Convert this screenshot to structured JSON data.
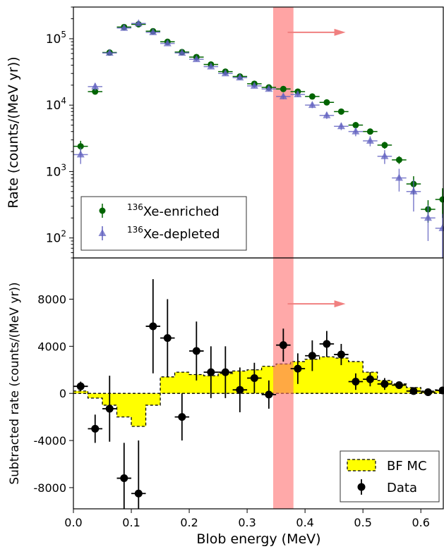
{
  "chart_data": [
    {
      "type": "scatter",
      "ylabel": "Rate (counts/(MeV yr))",
      "yscale": "log",
      "ylim": [
        50,
        300000
      ],
      "xlim": [
        0.0,
        0.64
      ],
      "yticks": [
        {
          "value": 100,
          "base": "10",
          "exp": "2"
        },
        {
          "value": 1000,
          "base": "10",
          "exp": "3"
        },
        {
          "value": 10000,
          "base": "10",
          "exp": "4"
        },
        {
          "value": 100000,
          "base": "10",
          "exp": "5"
        }
      ],
      "legend": {
        "placement": "lower-left",
        "entries": [
          {
            "sup": "136",
            "text": "Xe-enriched",
            "color": "#006400",
            "marker": "circle"
          },
          {
            "sup": "136",
            "text": "Xe-depleted",
            "color": "#6060c0",
            "marker": "triangle"
          }
        ]
      },
      "series": [
        {
          "name": "136Xe-enriched",
          "color": "#006400",
          "x": [
            0.0125,
            0.0375,
            0.0625,
            0.0875,
            0.1125,
            0.1375,
            0.1625,
            0.1875,
            0.2125,
            0.2375,
            0.2625,
            0.2875,
            0.3125,
            0.3375,
            0.3625,
            0.3875,
            0.4125,
            0.4375,
            0.4625,
            0.4875,
            0.5125,
            0.5375,
            0.5625,
            0.5875,
            0.6125,
            0.6375
          ],
          "y": [
            2400,
            16000,
            62000,
            150000,
            165000,
            130000,
            90000,
            63000,
            53000,
            41000,
            32000,
            27000,
            21000,
            18500,
            17500,
            16000,
            13500,
            11000,
            8000,
            5000,
            4000,
            2500,
            1500,
            650,
            270,
            380
          ],
          "yerr": [
            500,
            1500,
            3000,
            5000,
            5000,
            4000,
            3500,
            2500,
            2200,
            1800,
            1500,
            1300,
            1100,
            1000,
            900,
            850,
            750,
            650,
            500,
            450,
            400,
            300,
            200,
            200,
            100,
            180
          ]
        },
        {
          "name": "136Xe-depleted",
          "color": "#6060c0",
          "x": [
            0.0125,
            0.0375,
            0.0625,
            0.0875,
            0.1125,
            0.1375,
            0.1625,
            0.1875,
            0.2125,
            0.2375,
            0.2625,
            0.2875,
            0.3125,
            0.3375,
            0.3625,
            0.3875,
            0.4125,
            0.4375,
            0.4625,
            0.4875,
            0.5125,
            0.5375,
            0.5625,
            0.5875,
            0.6125,
            0.6375
          ],
          "y": [
            1800,
            19000,
            61000,
            145000,
            170000,
            125000,
            85000,
            61000,
            49000,
            38000,
            30000,
            26000,
            19500,
            17500,
            13500,
            14500,
            10000,
            7000,
            4800,
            4000,
            2900,
            1700,
            800,
            500,
            200,
            140
          ],
          "yerr": [
            500,
            2500,
            4000,
            8000,
            9000,
            7000,
            5000,
            3500,
            3000,
            2500,
            2000,
            1800,
            1400,
            1300,
            1200,
            1200,
            1000,
            800,
            600,
            600,
            500,
            400,
            300,
            250,
            110,
            90
          ]
        }
      ],
      "bin_half_width": 0.0125,
      "shaded_band": [
        0.345,
        0.38
      ],
      "arrow": {
        "from": 0.37,
        "to": 0.47,
        "y": 125000
      }
    },
    {
      "type": "bar",
      "ylabel": "Subtracted rate (counts/(MeV yr))",
      "xlabel": "Blob energy (MeV)",
      "xlim": [
        0.0,
        0.64
      ],
      "ylim": [
        -9800,
        11500
      ],
      "xticks": [
        "0.0",
        "0.1",
        "0.2",
        "0.3",
        "0.4",
        "0.5",
        "0.6"
      ],
      "ytick_values": [
        -8000,
        -4000,
        0,
        4000,
        8000
      ],
      "ytick_labels": [
        "-8000",
        "-4000",
        "0",
        "4000",
        "8000"
      ],
      "legend": {
        "placement": "lower-right",
        "entries": [
          {
            "text": "BF MC",
            "color": "#ffff00",
            "marker": "patch"
          },
          {
            "text": "Data",
            "color": "#000000",
            "marker": "circle"
          }
        ]
      },
      "mc_step": {
        "name": "BF MC",
        "color": "#ffff00",
        "edges": [
          0.0,
          0.025,
          0.05,
          0.075,
          0.1,
          0.125,
          0.15,
          0.175,
          0.2,
          0.225,
          0.25,
          0.275,
          0.3,
          0.325,
          0.35,
          0.375,
          0.4,
          0.425,
          0.45,
          0.475,
          0.5,
          0.525,
          0.55,
          0.575,
          0.6,
          0.625,
          0.64
        ],
        "values": [
          200,
          -400,
          -1000,
          -2000,
          -2800,
          -1000,
          1400,
          1800,
          1600,
          1500,
          1700,
          1900,
          2000,
          2300,
          2500,
          2700,
          2900,
          3100,
          3000,
          2700,
          1800,
          1100,
          800,
          500,
          200,
          300
        ]
      },
      "data_series": {
        "name": "Data",
        "color": "#000000",
        "x": [
          0.0125,
          0.0375,
          0.0625,
          0.0875,
          0.1125,
          0.1375,
          0.1625,
          0.1875,
          0.2125,
          0.2375,
          0.2625,
          0.2875,
          0.3125,
          0.3375,
          0.3625,
          0.3875,
          0.4125,
          0.4375,
          0.4625,
          0.4875,
          0.5125,
          0.5375,
          0.5625,
          0.5875,
          0.6125,
          0.6375
        ],
        "y": [
          600,
          -3000,
          -1300,
          -7200,
          -8500,
          5700,
          4700,
          -2000,
          3600,
          1800,
          1800,
          300,
          1300,
          -100,
          4100,
          2100,
          3200,
          4200,
          3300,
          1000,
          1200,
          800,
          700,
          200,
          100,
          250
        ],
        "yerr": [
          400,
          1200,
          2800,
          3000,
          4500,
          4000,
          3300,
          2000,
          2500,
          2200,
          2200,
          1900,
          1300,
          1200,
          1400,
          1300,
          1300,
          1100,
          900,
          700,
          600,
          500,
          300,
          200,
          150,
          150
        ]
      },
      "shaded_band": [
        0.345,
        0.38
      ],
      "arrow": {
        "from": 0.37,
        "to": 0.47,
        "y": 7600
      }
    }
  ]
}
